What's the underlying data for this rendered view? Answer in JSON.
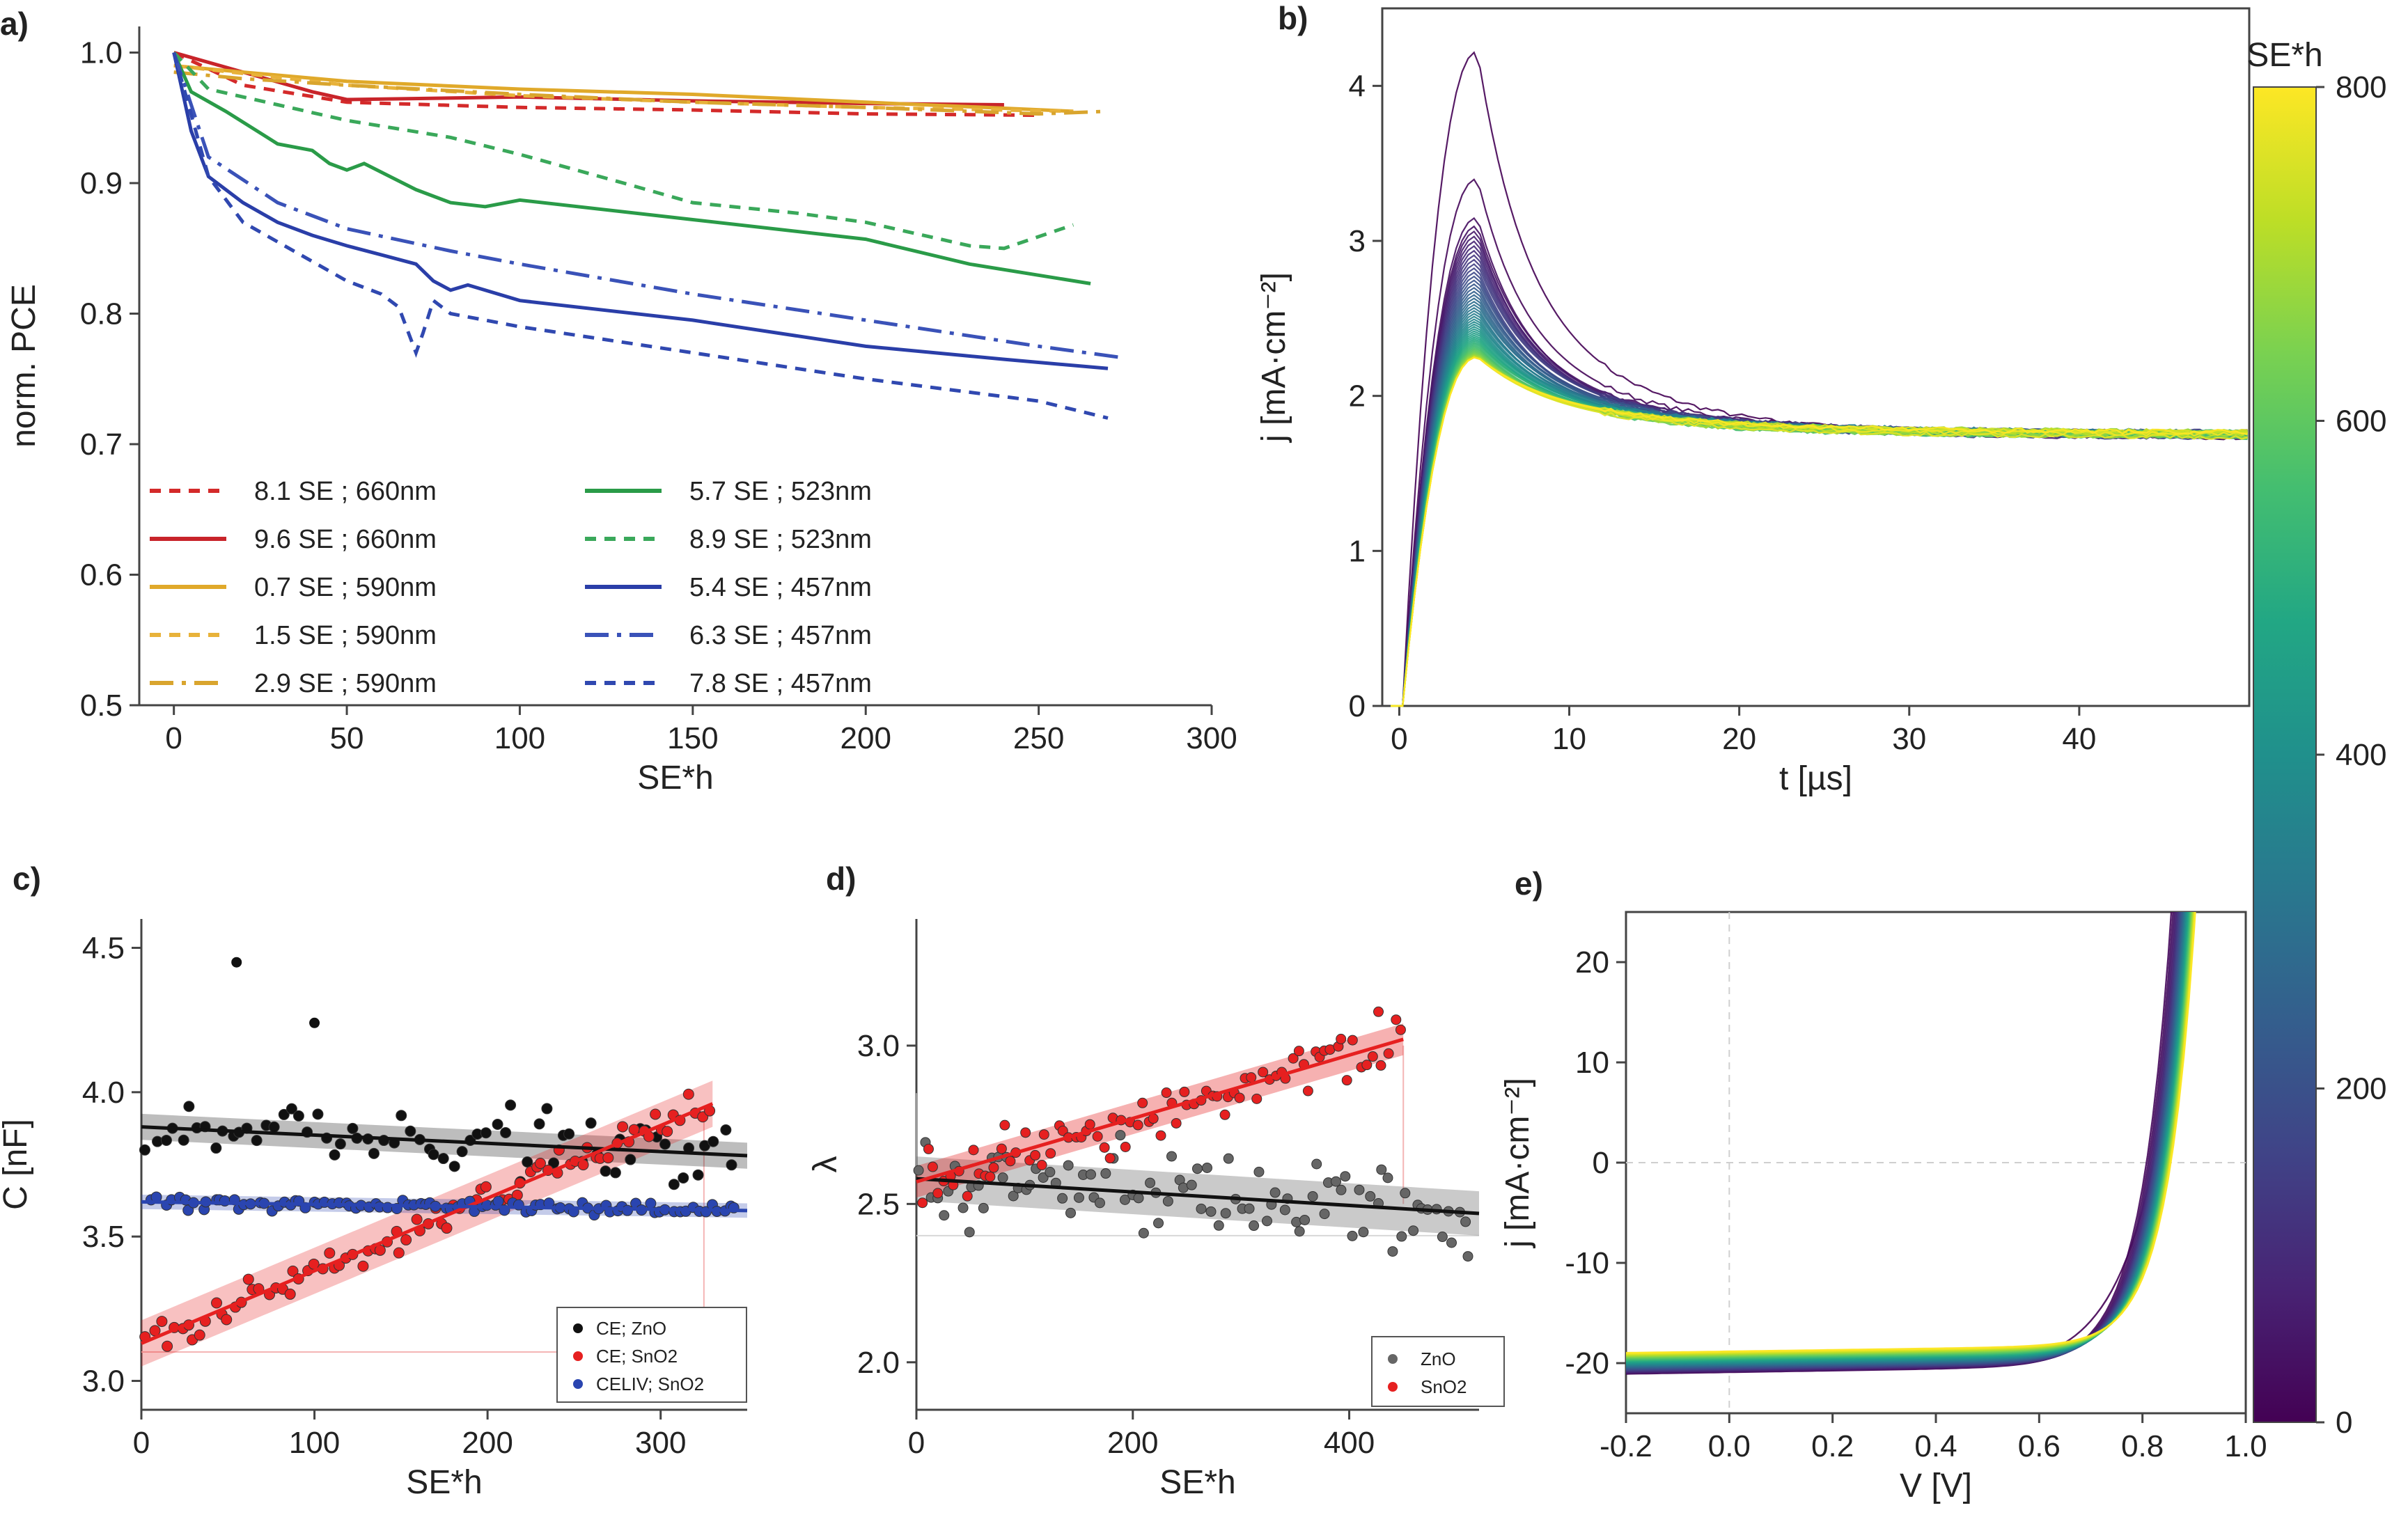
{
  "chart_data": [
    {
      "panel": "a)",
      "type": "line",
      "xlabel": "SE*h",
      "ylabel": "norm. PCE",
      "xlim": [
        -10,
        300
      ],
      "ylim": [
        0.5,
        1.02
      ],
      "xticks": [
        "0",
        "50",
        "100",
        "150",
        "200",
        "250",
        "300"
      ],
      "yticks": [
        "0.5",
        "0.6",
        "0.7",
        "0.8",
        "0.9",
        "1.0"
      ],
      "legend_position": "bottom",
      "series": [
        {
          "name": "8.1 SE ; 660nm",
          "color": "#d42a2a",
          "dash": "dotted",
          "x": [
            0,
            20,
            50,
            100,
            150,
            200,
            250
          ],
          "y": [
            1.0,
            0.975,
            0.962,
            0.958,
            0.956,
            0.953,
            0.952
          ]
        },
        {
          "name": "9.6 SE ; 660nm",
          "color": "#c8242a",
          "dash": "solid",
          "x": [
            0,
            20,
            40,
            50,
            100,
            150,
            200,
            240
          ],
          "y": [
            1.0,
            0.985,
            0.97,
            0.964,
            0.966,
            0.963,
            0.961,
            0.96
          ]
        },
        {
          "name": "0.7 SE ; 590nm",
          "color": "#e0a92a",
          "dash": "solid",
          "x": [
            0,
            20,
            50,
            100,
            150,
            200,
            260
          ],
          "y": [
            0.99,
            0.985,
            0.978,
            0.972,
            0.968,
            0.962,
            0.955
          ]
        },
        {
          "name": "1.5 SE ; 590nm",
          "color": "#e8b23a",
          "dash": "dotted",
          "x": [
            0,
            20,
            50,
            100,
            150,
            200,
            260
          ],
          "y": [
            0.99,
            0.984,
            0.975,
            0.967,
            0.962,
            0.958,
            0.955
          ]
        },
        {
          "name": "2.9 SE ; 590nm",
          "color": "#d9a52e",
          "dash": "dashdot",
          "x": [
            0,
            20,
            50,
            100,
            150,
            200,
            250,
            270
          ],
          "y": [
            0.985,
            0.98,
            0.975,
            0.968,
            0.962,
            0.958,
            0.953,
            0.955
          ]
        },
        {
          "name": "5.7 SE ; 523nm",
          "color": "#2a9b48",
          "dash": "solid",
          "x": [
            0,
            5,
            15,
            30,
            40,
            45,
            50,
            55,
            70,
            80,
            90,
            100,
            150,
            200,
            230,
            265
          ],
          "y": [
            1.0,
            0.97,
            0.955,
            0.93,
            0.925,
            0.915,
            0.91,
            0.915,
            0.895,
            0.885,
            0.882,
            0.887,
            0.872,
            0.857,
            0.838,
            0.823
          ]
        },
        {
          "name": "8.9 SE ; 523nm",
          "color": "#3aa85a",
          "dash": "dotted",
          "x": [
            0,
            10,
            30,
            50,
            80,
            100,
            130,
            150,
            180,
            200,
            230,
            240,
            260
          ],
          "y": [
            1.0,
            0.972,
            0.96,
            0.948,
            0.935,
            0.922,
            0.9,
            0.885,
            0.877,
            0.87,
            0.852,
            0.85,
            0.868
          ]
        },
        {
          "name": "5.4 SE ; 457nm",
          "color": "#2a3ea8",
          "dash": "solid",
          "x": [
            0,
            5,
            10,
            20,
            30,
            40,
            50,
            60,
            70,
            75,
            80,
            85,
            100,
            150,
            200,
            240,
            270
          ],
          "y": [
            1.0,
            0.94,
            0.905,
            0.885,
            0.87,
            0.86,
            0.852,
            0.845,
            0.838,
            0.825,
            0.818,
            0.822,
            0.81,
            0.795,
            0.775,
            0.765,
            0.758
          ]
        },
        {
          "name": "6.3 SE ; 457nm",
          "color": "#3a52b8",
          "dash": "dashdot",
          "x": [
            0,
            10,
            30,
            50,
            80,
            100,
            150,
            200,
            250,
            275
          ],
          "y": [
            1.0,
            0.92,
            0.885,
            0.865,
            0.848,
            0.838,
            0.815,
            0.795,
            0.775,
            0.766
          ]
        },
        {
          "name": "7.8 SE ; 457nm",
          "color": "#3048b0",
          "dash": "dotted",
          "x": [
            0,
            10,
            20,
            30,
            40,
            50,
            60,
            65,
            70,
            72,
            75,
            80,
            100,
            150,
            200,
            250,
            270
          ],
          "y": [
            1.0,
            0.905,
            0.87,
            0.855,
            0.84,
            0.825,
            0.815,
            0.805,
            0.77,
            0.785,
            0.81,
            0.8,
            0.79,
            0.77,
            0.75,
            0.733,
            0.72
          ]
        }
      ]
    },
    {
      "panel": "b)",
      "type": "line",
      "xlabel": "t [µs]",
      "ylabel": "j [mA·cm⁻²]",
      "xlim": [
        -1,
        50
      ],
      "ylim": [
        0,
        4.5
      ],
      "xticks": [
        "0",
        "10",
        "20",
        "30",
        "40"
      ],
      "yticks": [
        "0",
        "1",
        "2",
        "3",
        "4"
      ],
      "colorbar": {
        "label": "SE*h",
        "ticks": [
          "0",
          "200",
          "400",
          "600",
          "800"
        ],
        "range": [
          0,
          800
        ],
        "colormap": "viridis"
      },
      "series_description": "family of transient photocurrent curves colored by SE*h",
      "peak_time": 4.5,
      "peak_values_first_to_last": [
        4.22,
        3.4,
        3.15,
        2.6,
        2.25
      ],
      "plateau_value_at_50us": 1.75
    },
    {
      "panel": "c)",
      "type": "scatter",
      "xlabel": "SE*h",
      "ylabel": "C [nF]",
      "xlim": [
        0,
        350
      ],
      "ylim": [
        2.9,
        4.6
      ],
      "xticks": [
        "0",
        "100",
        "200",
        "300"
      ],
      "yticks": [
        "3.0",
        "3.5",
        "4.0",
        "4.5"
      ],
      "legend_position": "bottom-right",
      "series": [
        {
          "name": "CE; ZnO",
          "color": "#111111",
          "fit": [
            [
              0,
              3.88
            ],
            [
              350,
              3.78
            ]
          ]
        },
        {
          "name": "CE; SnO2",
          "color": "#e62020",
          "fit": [
            [
              0,
              3.13
            ],
            [
              330,
              3.96
            ]
          ]
        },
        {
          "name": "CELIV; SnO2",
          "color": "#2a45b0",
          "fit": [
            [
              0,
              3.62
            ],
            [
              350,
              3.59
            ]
          ]
        }
      ]
    },
    {
      "panel": "d)",
      "type": "scatter",
      "xlabel": "SE*h",
      "ylabel": "λ",
      "xlim": [
        0,
        520
      ],
      "ylim": [
        1.85,
        3.4
      ],
      "xticks": [
        "0",
        "200",
        "400"
      ],
      "yticks": [
        "2.0",
        "2.5",
        "3.0"
      ],
      "legend_position": "bottom-right",
      "series": [
        {
          "name": "ZnO",
          "color": "#666666",
          "fit": [
            [
              0,
              2.58
            ],
            [
              520,
              2.47
            ]
          ]
        },
        {
          "name": "SnO2",
          "color": "#e62020",
          "fit": [
            [
              0,
              2.57
            ],
            [
              450,
              3.02
            ]
          ]
        }
      ]
    },
    {
      "panel": "e)",
      "type": "line",
      "xlabel": "V [V]",
      "ylabel": "j [mA·cm⁻²]",
      "xlim": [
        -0.2,
        1.0
      ],
      "ylim": [
        -25,
        25
      ],
      "xticks": [
        "-0.2",
        "0.0",
        "0.2",
        "0.4",
        "0.6",
        "0.8",
        "1.0"
      ],
      "yticks": [
        "-20",
        "-10",
        "0",
        "10",
        "20"
      ],
      "series_description": "family of J-V curves colored by SE*h (same colorbar as b)",
      "jsc_range": [
        -20.3,
        -18.2
      ],
      "voc_range": [
        0.8,
        0.86
      ]
    }
  ]
}
